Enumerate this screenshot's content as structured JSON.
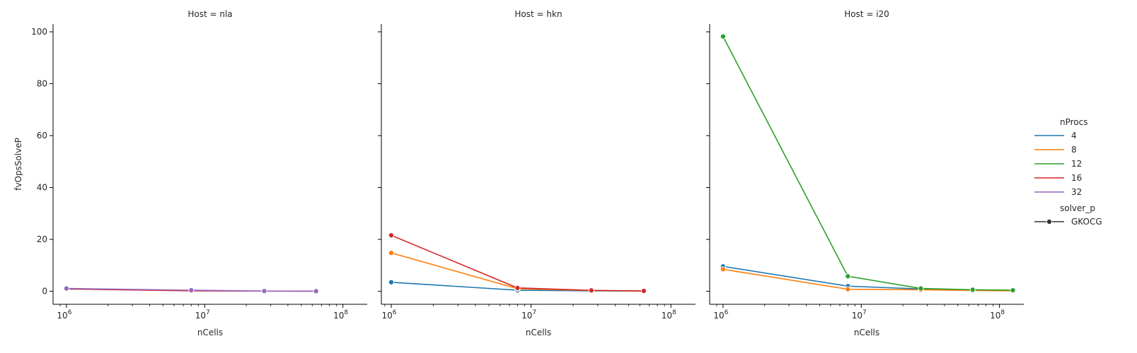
{
  "chart_data": {
    "type": "line",
    "x_scale": "log",
    "y_label": "fvOpsSolveP",
    "x_label": "nCells",
    "ylim": [
      -5,
      103
    ],
    "y_ticks": [
      0,
      20,
      40,
      60,
      80,
      100
    ],
    "x_ticks": [
      {
        "value": 1000000,
        "base": "10",
        "exp": "6"
      },
      {
        "value": 10000000,
        "base": "10",
        "exp": "7"
      },
      {
        "value": 100000000,
        "base": "10",
        "exp": "8"
      }
    ],
    "legend": {
      "placement": "right",
      "hue_title": "nProcs",
      "hue_entries": [
        {
          "label": "4",
          "color": "#1f77b4"
        },
        {
          "label": "8",
          "color": "#ff7f0e"
        },
        {
          "label": "12",
          "color": "#2ca02c"
        },
        {
          "label": "16",
          "color": "#d62728"
        },
        {
          "label": "32",
          "color": "#9467bd"
        }
      ],
      "style_title": "solver_p",
      "style_entries": [
        {
          "label": "GKOCG",
          "color": "#333333"
        }
      ]
    },
    "panels": [
      {
        "title": "Host = nla",
        "xlim": [
          800000,
          150000000
        ],
        "series": [
          {
            "name": "16",
            "color": "#d62728",
            "points": [
              [
                1000000,
                0.9
              ],
              [
                8000000,
                0.2
              ],
              [
                27000000,
                0.1
              ],
              [
                64000000,
                0.05
              ]
            ]
          },
          {
            "name": "32",
            "color": "#9467bd",
            "points": [
              [
                1000000,
                1.1
              ],
              [
                8000000,
                0.4
              ],
              [
                27000000,
                0.1
              ],
              [
                64000000,
                0.05
              ]
            ]
          }
        ]
      },
      {
        "title": "Host = hkn",
        "xlim": [
          850000,
          150000000
        ],
        "series": [
          {
            "name": "4",
            "color": "#1f77b4",
            "points": [
              [
                1000000,
                3.5
              ],
              [
                8000000,
                0.4
              ],
              [
                27000000,
                0.2
              ],
              [
                64000000,
                0.1
              ]
            ]
          },
          {
            "name": "8",
            "color": "#ff7f0e",
            "points": [
              [
                1000000,
                14.8
              ],
              [
                8000000,
                1.0
              ],
              [
                27000000,
                0.3
              ],
              [
                64000000,
                0.15
              ]
            ]
          },
          {
            "name": "16",
            "color": "#d62728",
            "points": [
              [
                1000000,
                21.6
              ],
              [
                8000000,
                1.3
              ],
              [
                27000000,
                0.35
              ],
              [
                64000000,
                0.15
              ]
            ]
          }
        ]
      },
      {
        "title": "Host = i20",
        "xlim": [
          800000,
          150000000
        ],
        "series": [
          {
            "name": "4",
            "color": "#1f77b4",
            "points": [
              [
                1000000,
                9.6
              ],
              [
                8000000,
                2.0
              ],
              [
                27000000,
                0.9
              ],
              [
                64000000,
                0.5
              ],
              [
                125000000,
                0.3
              ]
            ]
          },
          {
            "name": "8",
            "color": "#ff7f0e",
            "points": [
              [
                1000000,
                8.5
              ],
              [
                8000000,
                0.8
              ],
              [
                27000000,
                0.6
              ],
              [
                64000000,
                0.3
              ],
              [
                125000000,
                0.2
              ]
            ]
          },
          {
            "name": "12",
            "color": "#2ca02c",
            "points": [
              [
                1000000,
                98.2
              ],
              [
                8000000,
                5.8
              ],
              [
                27000000,
                1.1
              ],
              [
                64000000,
                0.6
              ],
              [
                125000000,
                0.4
              ]
            ]
          }
        ]
      }
    ]
  }
}
